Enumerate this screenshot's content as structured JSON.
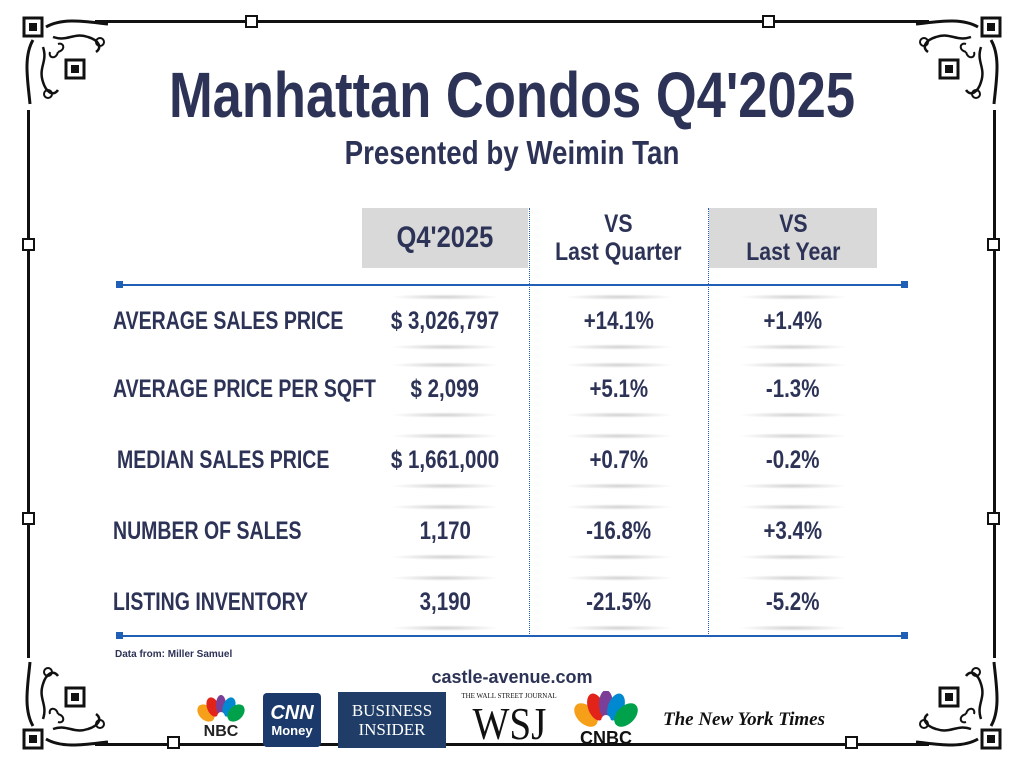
{
  "title": "Manhattan Condos Q4'2025",
  "subtitle": "Presented by Weimin Tan",
  "table": {
    "headers": {
      "current": "Q4'2025",
      "vs_quarter_1": "VS",
      "vs_quarter_2": "Last Quarter",
      "vs_year_1": "VS",
      "vs_year_2": "Last Year"
    },
    "rows": [
      {
        "label": "AVERAGE SALES PRICE",
        "value": "$ 3,026,797",
        "vs_quarter": "+14.1%",
        "vs_year": "+1.4%"
      },
      {
        "label": "AVERAGE PRICE PER SQFT",
        "value": "$ 2,099",
        "vs_quarter": "+5.1%",
        "vs_year": "-1.3%"
      },
      {
        "label": "MEDIAN SALES PRICE",
        "value": "$ 1,661,000",
        "vs_quarter": "+0.7%",
        "vs_year": "-0.2%"
      },
      {
        "label": "NUMBER OF SALES",
        "value": "1,170",
        "vs_quarter": "-16.8%",
        "vs_year": "+3.4%"
      },
      {
        "label": "LISTING INVENTORY",
        "value": "3,190",
        "vs_quarter": "-21.5%",
        "vs_year": "-5.2%"
      }
    ]
  },
  "source": "Data from: Miller Samuel",
  "website": "castle-avenue.com",
  "logos": {
    "nbc": "NBC",
    "cnn_1": "CNN",
    "cnn_2": "Money",
    "bi_1": "BUSINESS",
    "bi_2": "INSIDER",
    "wsj_top": "THE WALL STREET JOURNAL",
    "wsj": "WSJ",
    "cnbc": "CNBC",
    "nyt": "The New York Times"
  },
  "colors": {
    "navy": "#2d3356",
    "accent_blue": "#1f5fb5",
    "header_gray": "#d9d9d9",
    "cnn_red": "#c4161c",
    "cnn_blue": "#1b3a6b",
    "bi_blue": "#1f3d66"
  }
}
